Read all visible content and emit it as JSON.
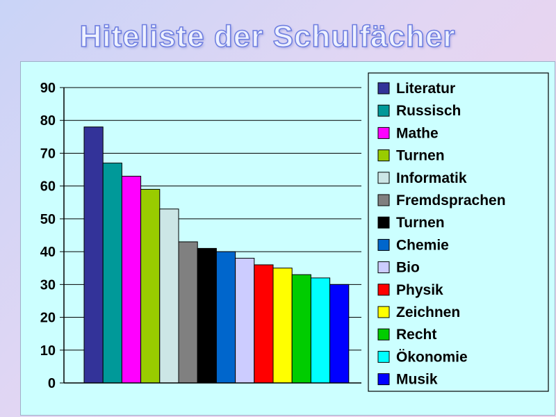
{
  "title": "Hiteliste der Schulfächer",
  "chart_data": {
    "type": "bar",
    "title": "Hiteliste der Schulfächer",
    "xlabel": "",
    "ylabel": "",
    "ylim": [
      0,
      90
    ],
    "yticks": [
      0,
      10,
      20,
      30,
      40,
      50,
      60,
      70,
      80,
      90
    ],
    "grid": true,
    "legend": "right",
    "series": [
      {
        "name": "Literatur",
        "value": 78,
        "color": "#333399"
      },
      {
        "name": "Russisch",
        "value": 67,
        "color": "#009999"
      },
      {
        "name": "Mathe",
        "value": 63,
        "color": "#ff00ff"
      },
      {
        "name": "Turnen",
        "value": 59,
        "color": "#99cc00"
      },
      {
        "name": "Informatik",
        "value": 53,
        "color": "#cce6e6"
      },
      {
        "name": "Fremdsprachen",
        "value": 43,
        "color": "#808080"
      },
      {
        "name": "Turnen",
        "value": 41,
        "color": "#000000"
      },
      {
        "name": "Chemie",
        "value": 40,
        "color": "#0066cc"
      },
      {
        "name": "Bio",
        "value": 38,
        "color": "#ccccff"
      },
      {
        "name": "Physik",
        "value": 36,
        "color": "#ff0000"
      },
      {
        "name": "Zeichnen",
        "value": 35,
        "color": "#ffff00"
      },
      {
        "name": "Recht",
        "value": 33,
        "color": "#00cc00"
      },
      {
        "name": "Ökonomie",
        "value": 32,
        "color": "#00ffff"
      },
      {
        "name": "Musik",
        "value": 30,
        "color": "#0000ff"
      }
    ]
  }
}
